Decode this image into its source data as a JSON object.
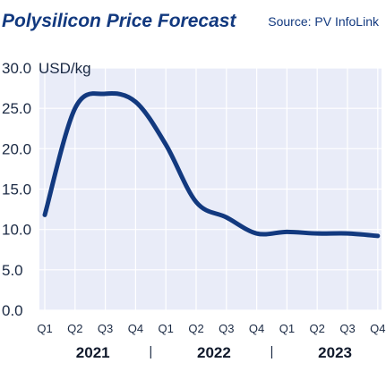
{
  "header": {
    "title": "Polysilicon Price Forecast",
    "source": "Source: PV InfoLink"
  },
  "chart_data": {
    "type": "line",
    "title": "Polysilicon Price Forecast",
    "xlabel": "",
    "ylabel": "",
    "unit_label": "USD/kg",
    "categories": [
      "Q1",
      "Q2",
      "Q3",
      "Q4",
      "Q1",
      "Q2",
      "Q3",
      "Q4",
      "Q1",
      "Q2",
      "Q3",
      "Q4"
    ],
    "groups": [
      {
        "label": "2021",
        "start": 0,
        "end": 3
      },
      {
        "label": "2022",
        "start": 4,
        "end": 7
      },
      {
        "label": "2023",
        "start": 8,
        "end": 11
      }
    ],
    "group_separator": "|",
    "yticks": [
      "0.0",
      "5.0",
      "10.0",
      "15.0",
      "20.0",
      "25.0",
      "30.0"
    ],
    "ylim": [
      0,
      30
    ],
    "grid": true,
    "series": [
      {
        "values": [
          11.8,
          25.0,
          26.8,
          25.8,
          20.5,
          13.4,
          11.5,
          9.5,
          9.7,
          9.5,
          9.5,
          9.2
        ]
      }
    ],
    "colors": {
      "line": "#12397f",
      "plot_bg": "#e9ecf8",
      "grid": "#ffffff",
      "text": "#1b2a44"
    }
  }
}
